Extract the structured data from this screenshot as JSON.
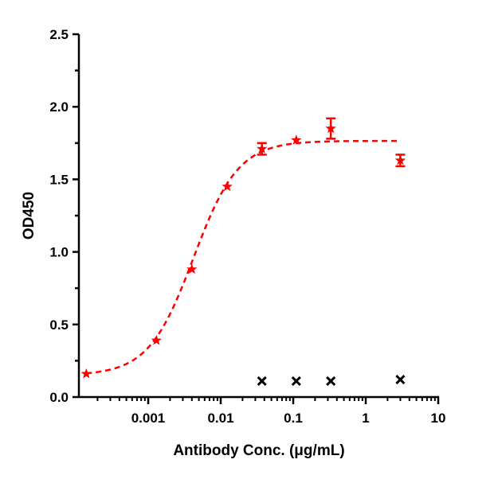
{
  "chart_data": {
    "type": "scatter",
    "title": "",
    "xlabel": "Antibody Conc. (μg/mL)",
    "ylabel": "OD450",
    "x_scale": "log",
    "xlim": [
      0.00011,
      10
    ],
    "ylim": [
      0,
      2.5
    ],
    "x_ticks": [
      0.001,
      0.01,
      0.1,
      1,
      10
    ],
    "x_tick_labels": [
      "0.001",
      "0.01",
      "0.1",
      "1",
      "10"
    ],
    "y_ticks": [
      0,
      0.5,
      1.0,
      1.5,
      2.0,
      2.5
    ],
    "y_tick_labels": [
      "0.0",
      "0.5",
      "1.0",
      "1.5",
      "2.0",
      "2.5"
    ],
    "grid": false,
    "legend": "none",
    "series": [
      {
        "color": "#ff0000",
        "marker": "star",
        "x": [
          0.00014,
          0.0013,
          0.004,
          0.0123,
          0.037,
          0.11,
          0.33,
          3.0
        ],
        "y": [
          0.16,
          0.39,
          0.88,
          1.45,
          1.71,
          1.77,
          1.85,
          1.63
        ],
        "error": [
          0.01,
          0.01,
          0.01,
          0.01,
          0.04,
          0.01,
          0.07,
          0.04
        ],
        "fit": {
          "model": "4PL",
          "bottom": 0.15,
          "top": 1.765,
          "ec50": 0.0042,
          "hill": 1.4,
          "line": "dashed"
        }
      },
      {
        "color": "#000000",
        "marker": "x",
        "x": [
          0.037,
          0.11,
          0.33,
          3.0
        ],
        "y": [
          0.11,
          0.11,
          0.11,
          0.12
        ]
      }
    ]
  }
}
